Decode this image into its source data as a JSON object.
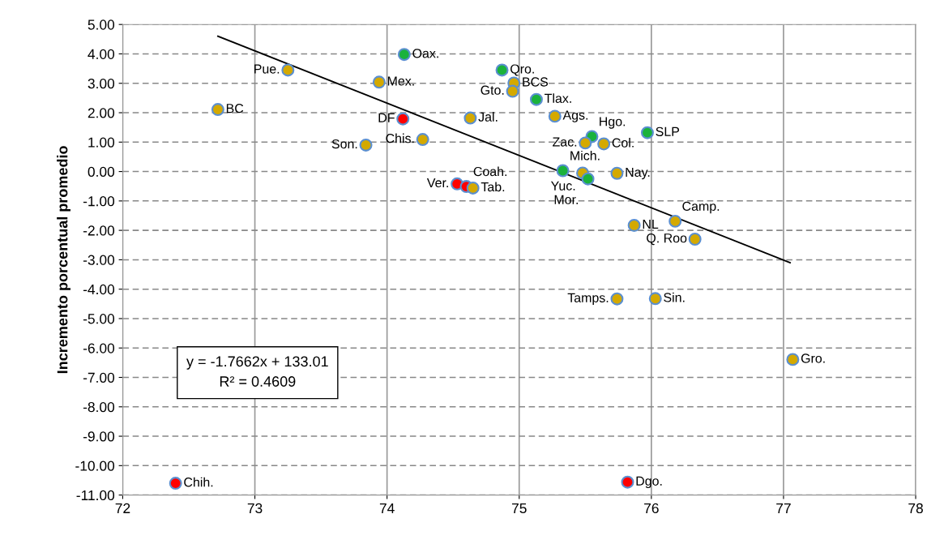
{
  "chart_data": {
    "type": "scatter",
    "ylabel": "Incremento porcentual promedio",
    "x": [
      73.25,
      72.72,
      74.13,
      73.94,
      74.12,
      74.27,
      73.84,
      74.87,
      74.96,
      74.95,
      75.13,
      75.27,
      74.63,
      75.55,
      75.97,
      75.5,
      75.64,
      75.33,
      75.48,
      75.52,
      75.74,
      74.53,
      74.6,
      74.65,
      75.87,
      76.18,
      76.33,
      75.74,
      76.03,
      77.07,
      72.4,
      75.82
    ],
    "values": [
      3.45,
      2.11,
      3.98,
      3.04,
      1.79,
      1.09,
      0.9,
      3.45,
      3.01,
      2.73,
      2.45,
      1.88,
      1.82,
      1.19,
      1.32,
      0.97,
      0.94,
      0.03,
      -0.05,
      -0.25,
      -0.06,
      -0.42,
      -0.51,
      -0.56,
      -1.83,
      -1.69,
      -2.3,
      -4.33,
      -4.32,
      -6.39,
      -10.6,
      -10.56
    ],
    "colors": [
      "#d4a900",
      "#d4a900",
      "#1ab23c",
      "#d4a900",
      "#ff0000",
      "#d4a900",
      "#d4a900",
      "#1ab23c",
      "#d4a900",
      "#d4a900",
      "#1ab23c",
      "#d4a900",
      "#d4a900",
      "#1ab23c",
      "#1ab23c",
      "#d4a900",
      "#d4a900",
      "#1ab23c",
      "#d4a900",
      "#1ab23c",
      "#d4a900",
      "#ff0000",
      "#ff0000",
      "#d4a900",
      "#d4a900",
      "#d4a900",
      "#d4a900",
      "#d4a900",
      "#d4a900",
      "#d4a900",
      "#ff0000",
      "#ff0000"
    ],
    "series": [
      {
        "type": "line",
        "color": "#000000",
        "marker": "none",
        "x": [
          72.72,
          77.05
        ],
        "values": [
          4.6,
          -3.1
        ]
      }
    ],
    "annotations": [
      {
        "text": "Pue.",
        "x": 73.25,
        "y": 3.45
      },
      {
        "text": "BC",
        "x": 72.72,
        "y": 2.11
      },
      {
        "text": "Oax.",
        "x": 74.13,
        "y": 3.98
      },
      {
        "text": "Mex.",
        "x": 73.94,
        "y": 3.04
      },
      {
        "text": "DF",
        "x": 74.12,
        "y": 1.79
      },
      {
        "text": "Chis.",
        "x": 74.27,
        "y": 1.09
      },
      {
        "text": "Son.",
        "x": 73.84,
        "y": 0.9
      },
      {
        "text": "Qro.",
        "x": 74.87,
        "y": 3.45
      },
      {
        "text": "BCS",
        "x": 74.96,
        "y": 3.01
      },
      {
        "text": "Gto.",
        "x": 74.95,
        "y": 2.73
      },
      {
        "text": "Tlax.",
        "x": 75.13,
        "y": 2.45
      },
      {
        "text": "Ags.",
        "x": 75.27,
        "y": 1.88
      },
      {
        "text": "Jal.",
        "x": 74.63,
        "y": 1.82
      },
      {
        "text": "Hgo.",
        "x": 75.55,
        "y": 1.19
      },
      {
        "text": "SLP",
        "x": 75.97,
        "y": 1.32
      },
      {
        "text": "Zac.",
        "x": 75.5,
        "y": 0.97
      },
      {
        "text": "Col.",
        "x": 75.64,
        "y": 0.94
      },
      {
        "text": "Mich.",
        "x": 75.33,
        "y": 0.03
      },
      {
        "text": "Yuc.",
        "x": 75.48,
        "y": -0.05
      },
      {
        "text": "Mor.",
        "x": 75.52,
        "y": -0.25
      },
      {
        "text": "Nay.",
        "x": 75.74,
        "y": -0.06
      },
      {
        "text": "Ver.",
        "x": 74.53,
        "y": -0.42
      },
      {
        "text": "Coah.",
        "x": 74.6,
        "y": -0.51
      },
      {
        "text": "Tab.",
        "x": 74.65,
        "y": -0.56
      },
      {
        "text": "NL",
        "x": 75.87,
        "y": -1.83
      },
      {
        "text": "Camp.",
        "x": 76.18,
        "y": -1.69
      },
      {
        "text": "Q. Roo",
        "x": 76.33,
        "y": -2.3
      },
      {
        "text": "Tamps.",
        "x": 75.74,
        "y": -4.33
      },
      {
        "text": "Sin.",
        "x": 76.03,
        "y": -4.32
      },
      {
        "text": "Gro.",
        "x": 77.07,
        "y": -6.39
      },
      {
        "text": "Chih.",
        "x": 72.4,
        "y": -10.6
      },
      {
        "text": "Dgo.",
        "x": 75.82,
        "y": -10.56
      },
      "y = -1.7662x + 133.01\nR² = 0.4609"
    ],
    "xlim": [
      72,
      78
    ],
    "xticks": [
      72,
      73,
      74,
      75,
      76,
      77,
      78
    ],
    "ylim": [
      -11,
      5
    ],
    "yticks": [
      {
        "value": 5,
        "label": "5.00"
      },
      {
        "value": 4,
        "label": "4.00"
      },
      {
        "value": 3,
        "label": "3.00"
      },
      {
        "value": 2,
        "label": "2.00"
      },
      {
        "value": 1,
        "label": "1.00"
      },
      {
        "value": 0,
        "label": "0.00"
      },
      {
        "value": -1,
        "label": "-1.00"
      },
      {
        "value": -2,
        "label": "-2.00"
      },
      {
        "value": -3,
        "label": "-3.00"
      },
      {
        "value": -4,
        "label": "-4.00"
      },
      {
        "value": -5,
        "label": "-5.00"
      },
      {
        "value": -6,
        "label": "-6.00"
      },
      {
        "value": -7,
        "label": "-7.00"
      },
      {
        "value": -8,
        "label": "-8.00"
      },
      {
        "value": -9,
        "label": "-9.00"
      },
      {
        "value": -10,
        "label": "-10.00"
      },
      {
        "value": -11,
        "label": "-11.00"
      }
    ],
    "grid": true,
    "marker": "circle"
  }
}
